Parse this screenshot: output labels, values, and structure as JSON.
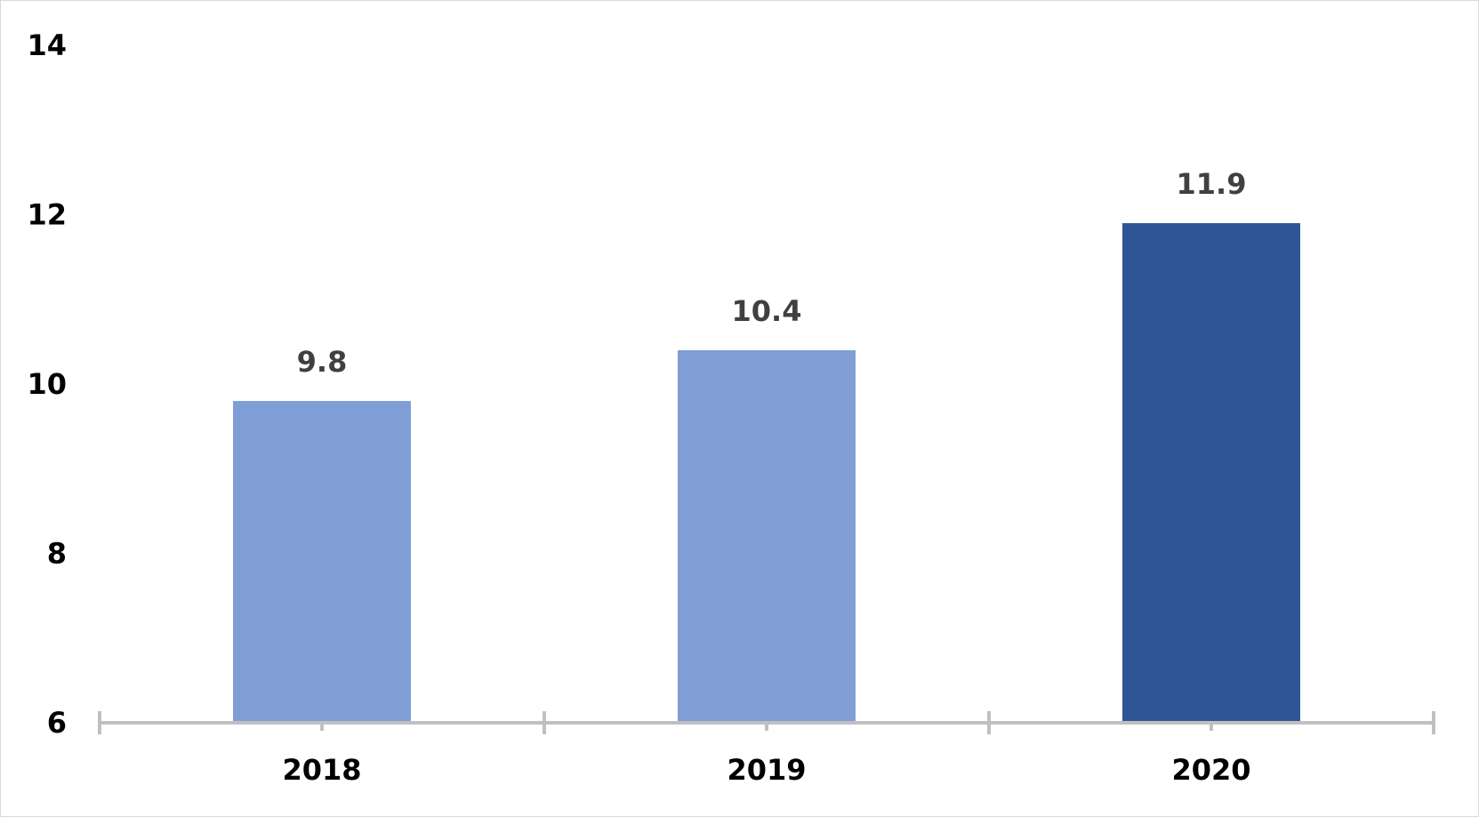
{
  "chart_data": {
    "type": "bar",
    "title": "",
    "xlabel": "",
    "ylabel": "",
    "categories": [
      "2018",
      "2019",
      "2020"
    ],
    "values": [
      9.8,
      10.4,
      11.9
    ],
    "data_labels": [
      "9.8",
      "10.4",
      "11.9"
    ],
    "y_ticks": [
      6,
      8,
      10,
      12,
      14
    ],
    "y_tick_labels": [
      "6",
      "8",
      "10",
      "12",
      "14"
    ],
    "ylim": [
      6,
      14
    ],
    "grid": false,
    "legend": "none",
    "bar_colors": [
      "#7f9ed6",
      "#7f9ed6",
      "#2f5597"
    ],
    "axis_color": "#c0c0c0",
    "data_label_color": "#404040",
    "tick_label_color": "#000000"
  }
}
